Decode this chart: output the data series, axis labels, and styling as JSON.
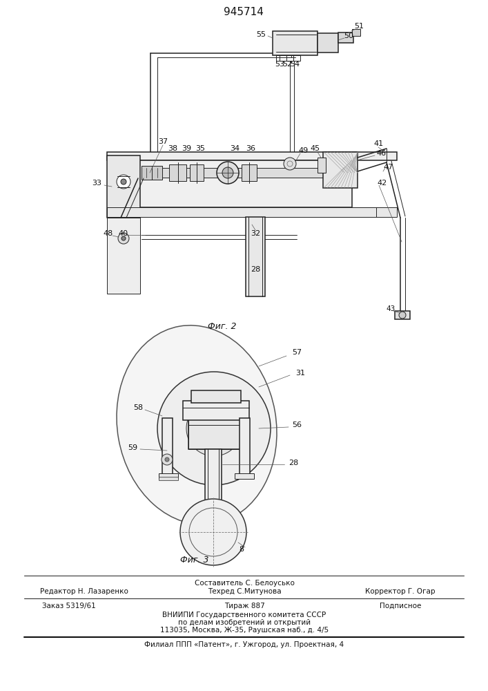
{
  "patent_number": "945714",
  "background_color": "#ffffff",
  "line_color": "#1a1a1a",
  "fig2_caption": "Фиг. 2",
  "fig3_caption": "Фиг. 3",
  "footer_line1_left": "Редактор Н. Лазаренко",
  "footer_line1_center_top": "Составитель С. Белоусько",
  "footer_line1_center": "Техред С.Митунова",
  "footer_line1_right": "Корректор Г. Огар",
  "footer_line2_left": "Заказ 5319/61",
  "footer_line2_center": "Тираж 887",
  "footer_line2_right": "Подписное",
  "footer_line3": "ВНИИПИ Государственного комитета СССР",
  "footer_line4": "по делам изобретений и открытий",
  "footer_line5": "113035, Москва, Ж-35, Раушская наб., д. 4/5",
  "footer_line6": "Филиал ППП «Патент», г. Ужгород, ул. Проектная, 4"
}
